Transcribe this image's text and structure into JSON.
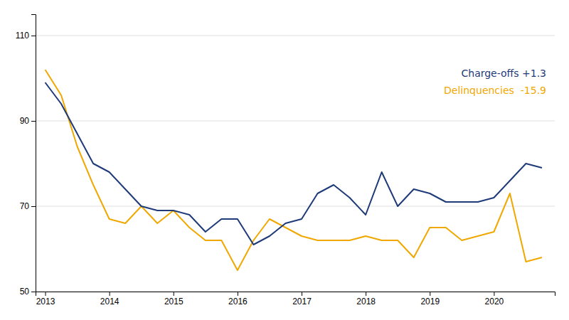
{
  "chart_data": {
    "type": "line",
    "x": [
      2013.0,
      2013.25,
      2013.5,
      2013.75,
      2014.0,
      2014.25,
      2014.5,
      2014.75,
      2015.0,
      2015.25,
      2015.5,
      2015.75,
      2016.0,
      2016.25,
      2016.5,
      2016.75,
      2017.0,
      2017.25,
      2017.5,
      2017.75,
      2018.0,
      2018.25,
      2018.5,
      2018.75,
      2019.0,
      2019.25,
      2019.5,
      2019.75,
      2020.0,
      2020.25,
      2020.5,
      2020.75
    ],
    "series": [
      {
        "name": "Charge-offs +1.3",
        "color": "#1e3a78",
        "values": [
          99,
          94,
          87,
          80,
          78,
          74,
          70,
          69,
          69,
          68,
          64,
          67,
          67,
          61,
          63,
          66,
          67,
          73,
          75,
          72,
          68,
          78,
          70,
          74,
          73,
          71,
          71,
          71,
          72,
          76,
          80,
          79
        ]
      },
      {
        "name": "Delinquencies  -15.9",
        "color": "#f0a800",
        "values": [
          102,
          96,
          84,
          75,
          67,
          66,
          70,
          66,
          69,
          65,
          62,
          62,
          55,
          62,
          67,
          65,
          63,
          62,
          62,
          62,
          63,
          62,
          62,
          58,
          65,
          65,
          62,
          63,
          64,
          73,
          57,
          58
        ]
      }
    ],
    "xlim": [
      2012.85,
      2020.95
    ],
    "xticks": [
      2013,
      2014,
      2015,
      2016,
      2017,
      2018,
      2019,
      2020
    ],
    "ylim": [
      50,
      115
    ],
    "yticks": [
      50,
      70,
      90,
      110
    ],
    "grid": true,
    "legend": "upper right"
  }
}
